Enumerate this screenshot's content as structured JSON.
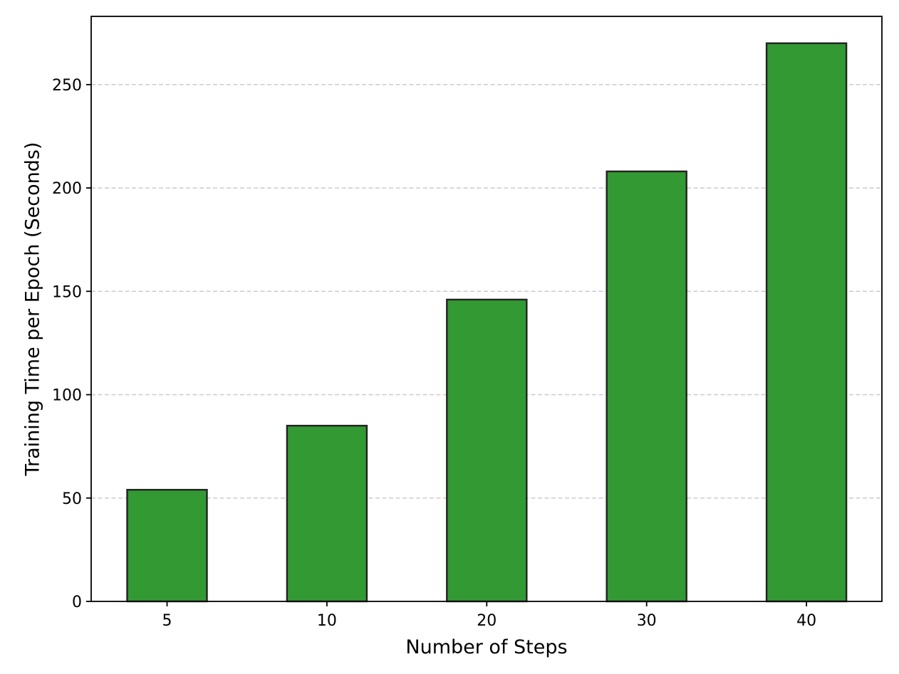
{
  "chart_data": {
    "type": "bar",
    "title": "",
    "xlabel": "Number of Steps",
    "ylabel": "Training Time per Epoch (Seconds)",
    "categories": [
      "5",
      "10",
      "20",
      "30",
      "40"
    ],
    "values": [
      54,
      85,
      146,
      208,
      270
    ],
    "ylim": [
      0,
      283
    ],
    "yticks": [
      0,
      50,
      100,
      150,
      200,
      250
    ],
    "grid": "horizontal dashed",
    "legend": "none",
    "bar_color": "#339933",
    "bar_edge_color": "#222222"
  }
}
